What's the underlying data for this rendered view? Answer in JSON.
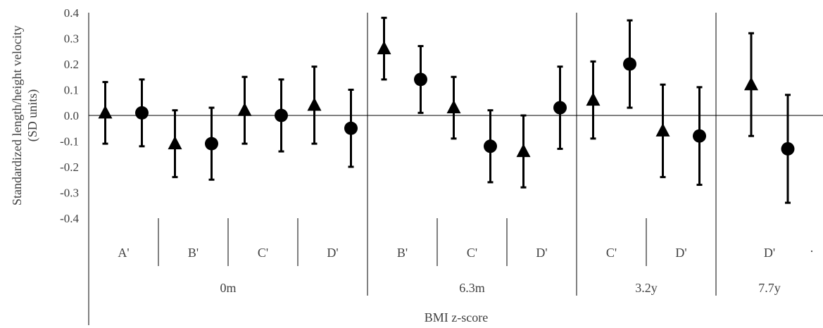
{
  "chart_data": {
    "type": "scatter",
    "title": "",
    "ylabel_lines": [
      "Standardized length/height  velocity",
      "(SD units)"
    ],
    "xlabel": "BMI z-score",
    "ylim": [
      -0.4,
      0.4
    ],
    "yticks": [
      "0.4",
      "0.3",
      "0.2",
      "0.1",
      "0.0",
      "-0.1",
      "-0.2",
      "-0.3",
      "-0.4"
    ],
    "age_groups": [
      {
        "label": "0m",
        "categories": [
          "A'",
          "B'",
          "C'",
          "D'"
        ]
      },
      {
        "label": "6.3m",
        "categories": [
          "B'",
          "C'",
          "D'"
        ]
      },
      {
        "label": "3.2y",
        "categories": [
          "C'",
          "D'"
        ]
      },
      {
        "label": "7.7y",
        "categories": [
          "D'"
        ]
      }
    ],
    "points": [
      {
        "group": "0m",
        "category": "A'",
        "marker": "triangle",
        "value": 0.01,
        "lower": -0.11,
        "upper": 0.13
      },
      {
        "group": "0m",
        "category": "A'",
        "marker": "circle",
        "value": 0.01,
        "lower": -0.12,
        "upper": 0.14
      },
      {
        "group": "0m",
        "category": "B'",
        "marker": "triangle",
        "value": -0.11,
        "lower": -0.24,
        "upper": 0.02
      },
      {
        "group": "0m",
        "category": "B'",
        "marker": "circle",
        "value": -0.11,
        "lower": -0.25,
        "upper": 0.03
      },
      {
        "group": "0m",
        "category": "C'",
        "marker": "triangle",
        "value": 0.02,
        "lower": -0.11,
        "upper": 0.15
      },
      {
        "group": "0m",
        "category": "C'",
        "marker": "circle",
        "value": 0.0,
        "lower": -0.14,
        "upper": 0.14
      },
      {
        "group": "0m",
        "category": "D'",
        "marker": "triangle",
        "value": 0.04,
        "lower": -0.11,
        "upper": 0.19
      },
      {
        "group": "0m",
        "category": "D'",
        "marker": "circle",
        "value": -0.05,
        "lower": -0.2,
        "upper": 0.1
      },
      {
        "group": "6.3m",
        "category": "B'",
        "marker": "triangle",
        "value": 0.26,
        "lower": 0.14,
        "upper": 0.38
      },
      {
        "group": "6.3m",
        "category": "B'",
        "marker": "circle",
        "value": 0.14,
        "lower": 0.01,
        "upper": 0.27
      },
      {
        "group": "6.3m",
        "category": "C'",
        "marker": "triangle",
        "value": 0.03,
        "lower": -0.09,
        "upper": 0.15
      },
      {
        "group": "6.3m",
        "category": "C'",
        "marker": "circle",
        "value": -0.12,
        "lower": -0.26,
        "upper": 0.02
      },
      {
        "group": "6.3m",
        "category": "D'",
        "marker": "triangle",
        "value": -0.14,
        "lower": -0.28,
        "upper": 0.0
      },
      {
        "group": "6.3m",
        "category": "D'",
        "marker": "circle",
        "value": 0.03,
        "lower": -0.13,
        "upper": 0.19
      },
      {
        "group": "3.2y",
        "category": "C'",
        "marker": "triangle",
        "value": 0.06,
        "lower": -0.09,
        "upper": 0.21
      },
      {
        "group": "3.2y",
        "category": "C'",
        "marker": "circle",
        "value": 0.2,
        "lower": 0.03,
        "upper": 0.37
      },
      {
        "group": "3.2y",
        "category": "D'",
        "marker": "triangle",
        "value": -0.06,
        "lower": -0.24,
        "upper": 0.12
      },
      {
        "group": "3.2y",
        "category": "D'",
        "marker": "circle",
        "value": -0.08,
        "lower": -0.27,
        "upper": 0.11
      },
      {
        "group": "7.7y",
        "category": "D'",
        "marker": "triangle",
        "value": 0.12,
        "lower": -0.08,
        "upper": 0.32
      },
      {
        "group": "7.7y",
        "category": "D'",
        "marker": "circle",
        "value": -0.13,
        "lower": -0.34,
        "upper": 0.08
      }
    ],
    "stray_mark": ".",
    "grid": false,
    "marker_color": "#000000",
    "axis_color": "#000000",
    "text_color": "#404040"
  }
}
